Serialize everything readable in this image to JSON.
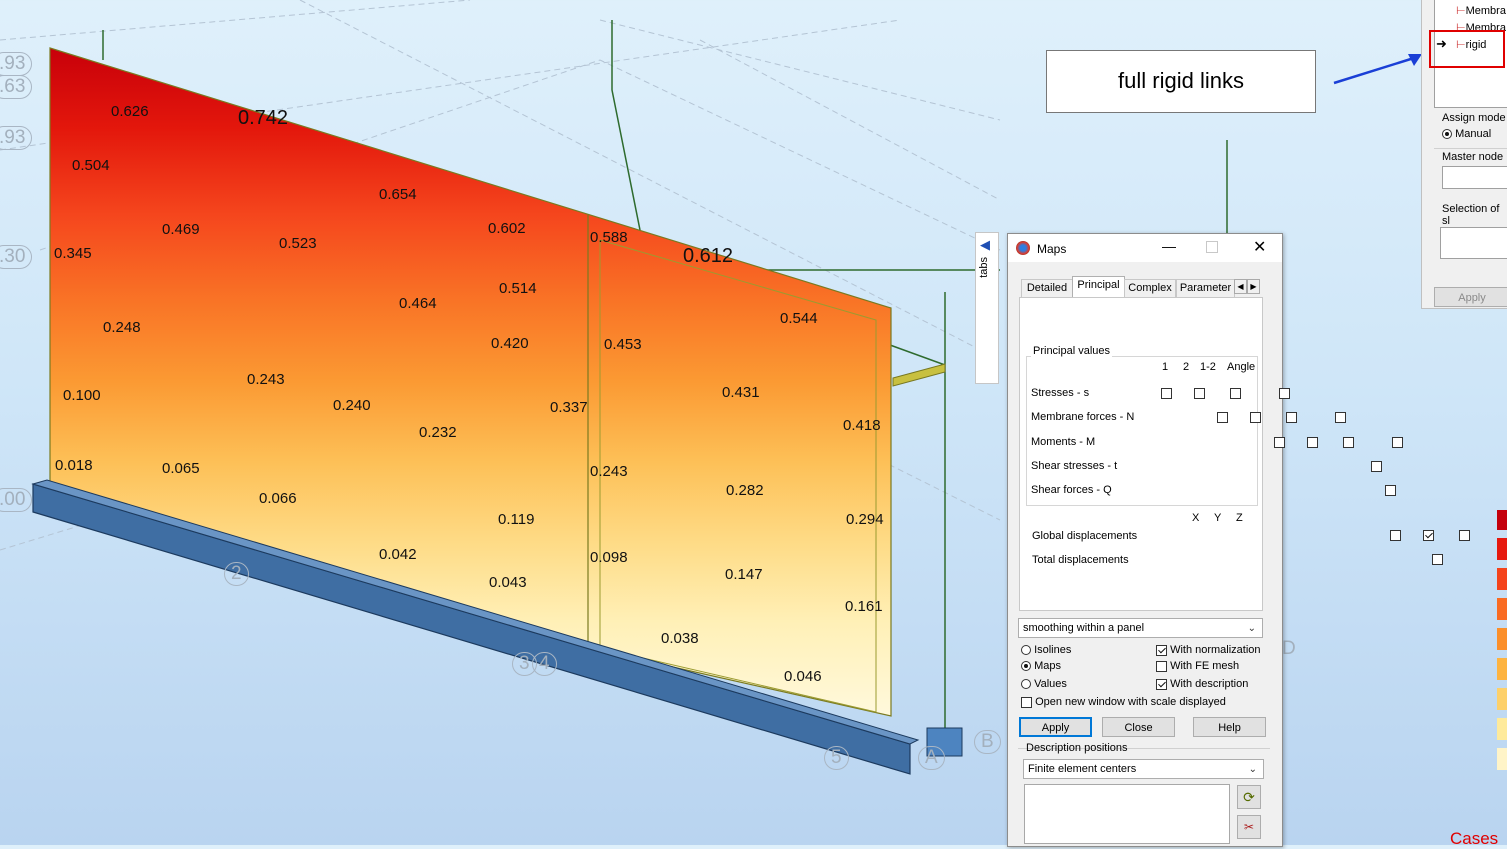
{
  "callout": {
    "text": "full rigid links"
  },
  "axis_bubbles": [
    ".93",
    ".63",
    ".93",
    ".30",
    ".00",
    "2",
    "3",
    "4",
    "5",
    "A",
    "B",
    "D"
  ],
  "panel_values": [
    "0.626",
    "0.742",
    "0.504",
    "0.654",
    "0.469",
    "0.523",
    "0.602",
    "0.588",
    "0.612",
    "0.345",
    "0.514",
    "0.464",
    "0.544",
    "0.248",
    "0.420",
    "0.453",
    "0.243",
    "0.431",
    "0.100",
    "0.240",
    "0.337",
    "0.232",
    "0.418",
    "0.018",
    "0.065",
    "0.243",
    "0.066",
    "0.282",
    "0.119",
    "0.294",
    "0.042",
    "0.098",
    "0.043",
    "0.147",
    "0.161",
    "0.038",
    "0.046"
  ],
  "side_panel": {
    "tree_items": [
      "Membra",
      "Membra",
      "rigid"
    ],
    "assign_mode_label": "Assign mode",
    "assign_mode_value": "Manual",
    "master_node_label": "Master node",
    "selection_label": "Selection of sl",
    "apply": "Apply"
  },
  "side_tabs_label": "tabs",
  "maps_dialog": {
    "title": "Maps",
    "tabs": [
      "Detailed",
      "Principal",
      "Complex",
      "Parameter"
    ],
    "active_tab": "Principal",
    "group_label": "Principal values",
    "columns": [
      "1",
      "2",
      "1-2",
      "Angle"
    ],
    "rows": [
      {
        "label": "Stresses - s",
        "checks": [
          false,
          false,
          false,
          false
        ]
      },
      {
        "label": "Membrane forces - N",
        "checks": [
          false,
          false,
          false,
          false
        ]
      },
      {
        "label": "Moments - M",
        "checks": [
          false,
          false,
          false,
          false
        ]
      },
      {
        "label": "Shear stresses - t",
        "checks": [
          false
        ]
      },
      {
        "label": "Shear forces - Q",
        "checks": [
          false
        ]
      }
    ],
    "disp_columns": [
      "X",
      "Y",
      "Z"
    ],
    "global_disp_label": "Global displacements",
    "global_disp": [
      false,
      true,
      false
    ],
    "total_disp_label": "Total displacements",
    "total_disp": false,
    "smoothing": "smoothing within a panel",
    "display_modes": [
      "Isolines",
      "Maps",
      "Values"
    ],
    "display_mode_selected": "Maps",
    "options": [
      {
        "label": "With normalization",
        "checked": true
      },
      {
        "label": "With FE mesh",
        "checked": false
      },
      {
        "label": "With description",
        "checked": true
      }
    ],
    "open_new_window": "Open new window with scale displayed",
    "open_new_window_checked": false,
    "buttons": {
      "apply": "Apply",
      "close": "Close",
      "help": "Help"
    },
    "desc_positions_label": "Description positions",
    "desc_positions_value": "Finite element centers"
  },
  "legend_fragment": "Cases",
  "colors": {
    "legend": [
      "#c4000c",
      "#e6190e",
      "#f4431b",
      "#f96b22",
      "#fb8f2a",
      "#fdb340",
      "#fdd06a",
      "#feea9b",
      "#fff4c8"
    ]
  }
}
